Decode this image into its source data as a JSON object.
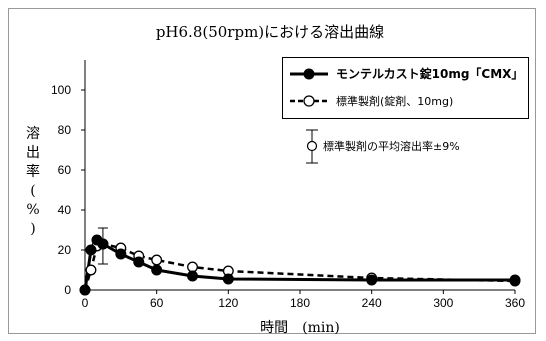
{
  "chart_data": {
    "type": "line",
    "title": "pH6.8(50rpm)における溶出曲線",
    "xlabel": "時間　(min)",
    "ylabel": "溶出率(%)",
    "xlim": [
      0,
      360
    ],
    "ylim": [
      0,
      100
    ],
    "x_ticks": [
      "0",
      "60",
      "120",
      "180",
      "240",
      "300",
      "360"
    ],
    "y_ticks": [
      "0",
      "20",
      "40",
      "60",
      "80",
      "100"
    ],
    "grid": false,
    "legend_position": "top-right",
    "series": [
      {
        "name": "モンテルカスト錠10mg「CMX」",
        "style": "solid",
        "marker": "filled-circle",
        "color": "#000000",
        "x": [
          0,
          5,
          10,
          15,
          30,
          45,
          60,
          90,
          120,
          240,
          360
        ],
        "y": [
          0,
          20,
          25,
          23,
          18,
          14,
          10,
          7,
          5.5,
          5,
          5
        ]
      },
      {
        "name": "標準製剤(錠剤、10mg)",
        "style": "dashed",
        "marker": "open-circle",
        "color": "#000000",
        "x": [
          0,
          5,
          10,
          15,
          30,
          45,
          60,
          90,
          120,
          240,
          360
        ],
        "y": [
          0,
          10,
          22,
          23,
          21,
          17,
          15,
          11.5,
          9.5,
          6,
          4.5
        ]
      }
    ],
    "error_bars": [
      {
        "x": 15,
        "y": 22,
        "low": 13,
        "high": 31
      }
    ],
    "legend_error_label": "標準製剤の平均溶出率±9%"
  }
}
